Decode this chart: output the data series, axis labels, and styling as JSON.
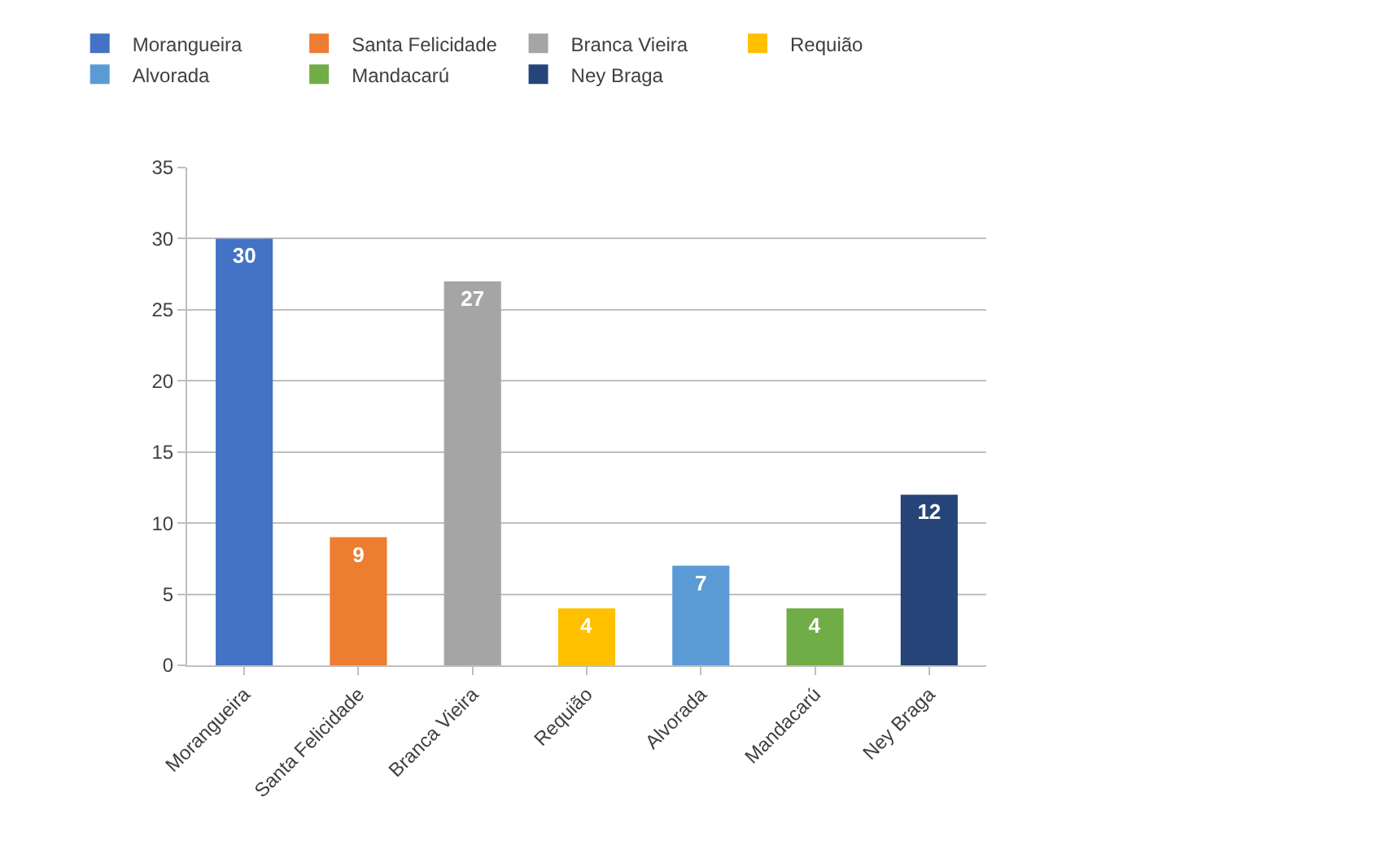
{
  "chart_data": {
    "type": "bar",
    "categories": [
      "Morangueira",
      "Santa Felicidade",
      "Branca Vieira",
      "Requião",
      "Alvorada",
      "Mandacarú",
      "Ney Braga"
    ],
    "series": [
      {
        "name": "Morangueira",
        "color": "#4472c4",
        "values": [
          30,
          null,
          null,
          null,
          null,
          null,
          null
        ]
      },
      {
        "name": "Santa Felicidade",
        "color": "#ed7d31",
        "values": [
          null,
          9,
          null,
          null,
          null,
          null,
          null
        ]
      },
      {
        "name": "Branca Vieira",
        "color": "#a5a5a5",
        "values": [
          null,
          null,
          27,
          null,
          null,
          null,
          null
        ]
      },
      {
        "name": "Requião",
        "color": "#ffc000",
        "values": [
          null,
          null,
          null,
          4,
          null,
          null,
          null
        ]
      },
      {
        "name": "Alvorada",
        "color": "#5b9bd5",
        "values": [
          null,
          null,
          null,
          null,
          7,
          null,
          null
        ]
      },
      {
        "name": "Mandacarú",
        "color": "#70ad47",
        "values": [
          null,
          null,
          null,
          null,
          null,
          4,
          null
        ]
      },
      {
        "name": "Ney Braga",
        "color": "#264478",
        "values": [
          null,
          null,
          null,
          null,
          null,
          null,
          12
        ]
      }
    ],
    "ylim": [
      0,
      35
    ],
    "yticks": [
      0,
      5,
      10,
      15,
      20,
      25,
      30,
      35
    ],
    "grid": "y",
    "legend": "top",
    "data_labels": true
  }
}
